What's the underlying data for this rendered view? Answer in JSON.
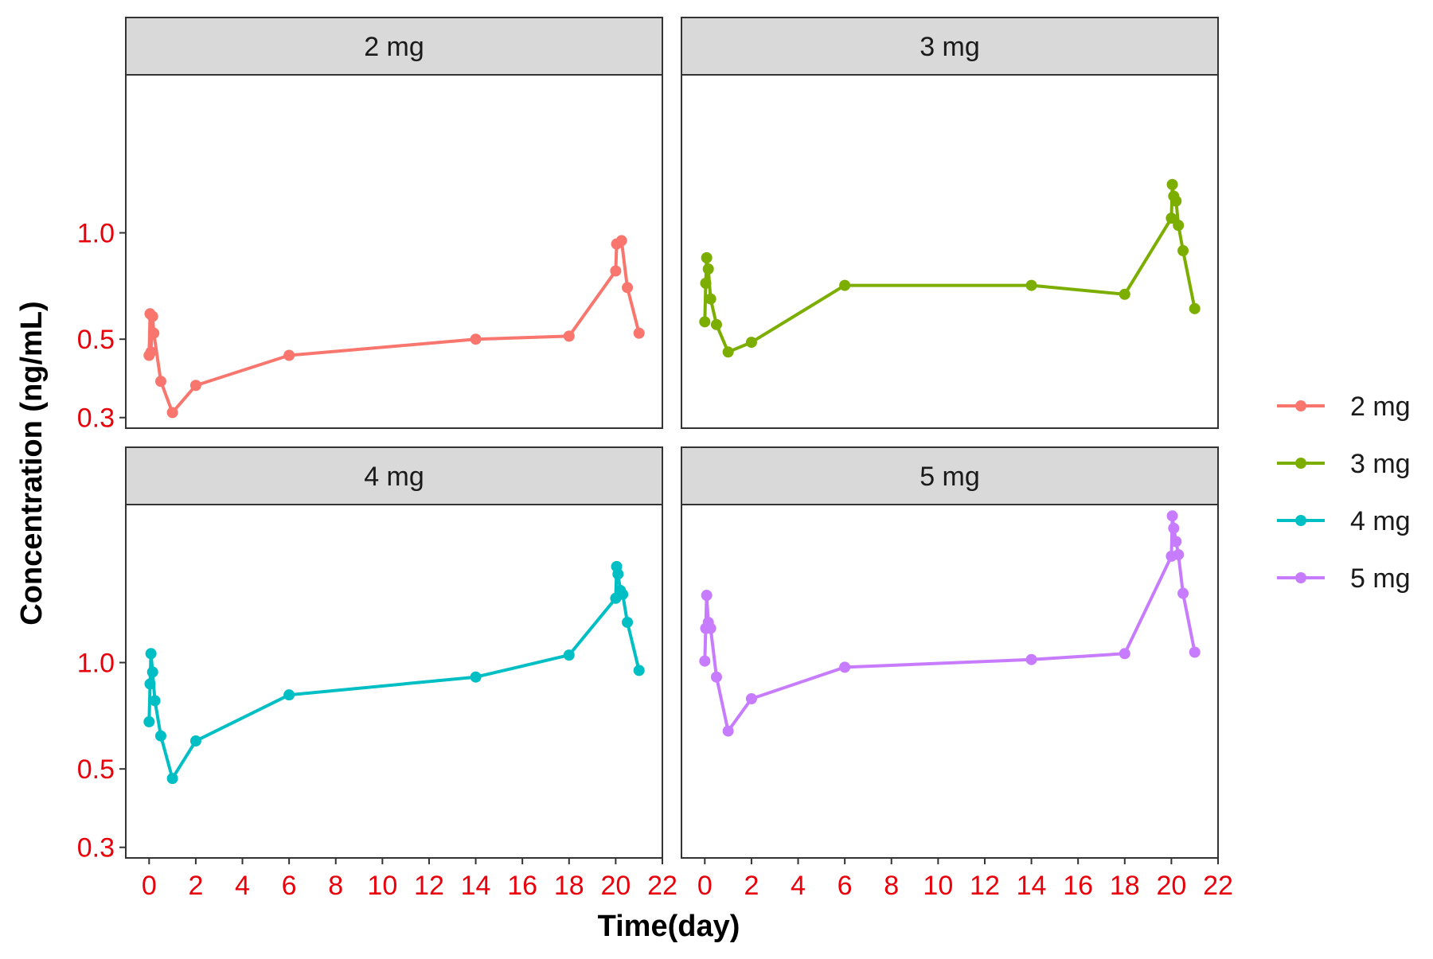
{
  "chart_data": {
    "type": "line",
    "facet": "dose",
    "xlabel": "Time(day)",
    "ylabel": "Concentration (ng/mL)",
    "x_ticks": [
      "0",
      "2",
      "4",
      "6",
      "8",
      "10",
      "12",
      "14",
      "16",
      "18",
      "20",
      "22"
    ],
    "xlim": [
      -1,
      22
    ],
    "y_scale": "log",
    "y_ticks": [
      "0.3",
      "0.5",
      "1.0"
    ],
    "y_tick_values": [
      0.3,
      0.5,
      1.0
    ],
    "ylim": [
      0.28,
      2.8
    ],
    "legend_position": "right",
    "legend": [
      "2 mg",
      "3 mg",
      "4 mg",
      "5 mg"
    ],
    "colors": {
      "tick_label": "#e8000b",
      "strip_bg": "#d9d9d9",
      "panel_border": "#333333"
    },
    "panels": [
      {
        "strip": "2 mg",
        "color": "#F8766D",
        "points": [
          [
            0,
            0.45
          ],
          [
            0.04,
            0.59
          ],
          [
            0.08,
            0.46
          ],
          [
            0.15,
            0.58
          ],
          [
            0.2,
            0.52
          ],
          [
            0.5,
            0.38
          ],
          [
            1,
            0.31
          ],
          [
            2,
            0.37
          ],
          [
            6,
            0.45
          ],
          [
            14,
            0.5
          ],
          [
            18,
            0.51
          ],
          [
            20,
            0.78
          ],
          [
            20.04,
            0.93
          ],
          [
            20.25,
            0.95
          ],
          [
            20.5,
            0.7
          ],
          [
            21,
            0.52
          ]
        ]
      },
      {
        "strip": "3 mg",
        "color": "#7CAE00",
        "points": [
          [
            0,
            0.56
          ],
          [
            0.04,
            0.72
          ],
          [
            0.08,
            0.85
          ],
          [
            0.15,
            0.79
          ],
          [
            0.25,
            0.65
          ],
          [
            0.5,
            0.55
          ],
          [
            1,
            0.46
          ],
          [
            2,
            0.49
          ],
          [
            6,
            0.71
          ],
          [
            14,
            0.71
          ],
          [
            18,
            0.67
          ],
          [
            20,
            1.1
          ],
          [
            20.04,
            1.37
          ],
          [
            20.1,
            1.27
          ],
          [
            20.2,
            1.23
          ],
          [
            20.3,
            1.05
          ],
          [
            20.5,
            0.89
          ],
          [
            21,
            0.61
          ]
        ]
      },
      {
        "strip": "4 mg",
        "color": "#00BFC4",
        "points": [
          [
            0,
            0.68
          ],
          [
            0.04,
            0.87
          ],
          [
            0.08,
            1.06
          ],
          [
            0.15,
            0.94
          ],
          [
            0.25,
            0.78
          ],
          [
            0.5,
            0.62
          ],
          [
            1,
            0.47
          ],
          [
            2,
            0.6
          ],
          [
            6,
            0.81
          ],
          [
            14,
            0.91
          ],
          [
            18,
            1.05
          ],
          [
            20,
            1.52
          ],
          [
            20.04,
            1.87
          ],
          [
            20.1,
            1.78
          ],
          [
            20.2,
            1.6
          ],
          [
            20.3,
            1.56
          ],
          [
            20.5,
            1.3
          ],
          [
            21,
            0.95
          ]
        ]
      },
      {
        "strip": "5 mg",
        "color": "#C77CFF",
        "points": [
          [
            0,
            1.01
          ],
          [
            0.04,
            1.25
          ],
          [
            0.08,
            1.55
          ],
          [
            0.15,
            1.3
          ],
          [
            0.25,
            1.25
          ],
          [
            0.5,
            0.91
          ],
          [
            1,
            0.64
          ],
          [
            2,
            0.79
          ],
          [
            6,
            0.97
          ],
          [
            14,
            1.02
          ],
          [
            18,
            1.06
          ],
          [
            20,
            2.0
          ],
          [
            20.04,
            2.6
          ],
          [
            20.1,
            2.4
          ],
          [
            20.2,
            2.2
          ],
          [
            20.3,
            2.02
          ],
          [
            20.5,
            1.57
          ],
          [
            21,
            1.07
          ]
        ]
      }
    ]
  }
}
